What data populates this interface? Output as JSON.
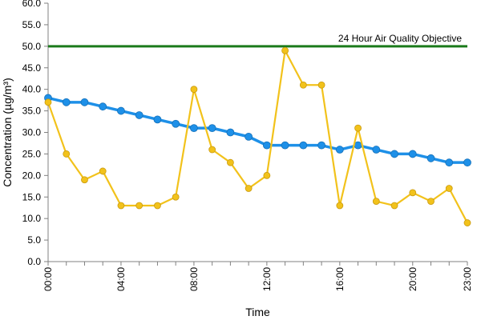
{
  "chart_data": {
    "type": "line",
    "xlabel": "Time",
    "ylabel": "Concentration (µg/m³)",
    "ylim": [
      0,
      60
    ],
    "yticks": [
      "0.0",
      "5.0",
      "10.0",
      "15.0",
      "20.0",
      "25.0",
      "30.0",
      "35.0",
      "40.0",
      "45.0",
      "50.0",
      "55.0",
      "60.0"
    ],
    "yticks_values": [
      0,
      5,
      10,
      15,
      20,
      25,
      30,
      35,
      40,
      45,
      50,
      55,
      60
    ],
    "x": [
      "00:00",
      "01:00",
      "02:00",
      "03:00",
      "04:00",
      "05:00",
      "06:00",
      "07:00",
      "08:00",
      "09:00",
      "10:00",
      "11:00",
      "12:00",
      "13:00",
      "14:00",
      "15:00",
      "16:00",
      "17:00",
      "18:00",
      "19:00",
      "20:00",
      "21:00",
      "22:00",
      "23:00"
    ],
    "xtick_labels": [
      "00:00",
      "04:00",
      "08:00",
      "12:00",
      "16:00",
      "20:00",
      "23:00"
    ],
    "xtick_index": [
      0,
      4,
      8,
      12,
      16,
      20,
      23
    ],
    "grid": false,
    "series": [
      {
        "values": [
          38,
          37,
          37,
          36,
          35,
          34,
          33,
          32,
          31,
          31,
          30,
          29,
          27,
          27,
          27,
          27,
          26,
          27,
          26,
          25,
          25,
          24,
          23,
          23
        ],
        "color": "#1e90e8"
      },
      {
        "values": [
          37,
          25,
          19,
          21,
          13,
          13,
          13,
          15,
          40,
          26,
          23,
          17,
          20,
          49,
          41,
          41,
          13,
          31,
          14,
          13,
          16,
          14,
          17,
          9
        ],
        "color": "#f2c21b"
      }
    ],
    "reference_line": {
      "value": 50,
      "label": "24 Hour Air Quality Objective",
      "color": "#1a7a1a"
    }
  }
}
